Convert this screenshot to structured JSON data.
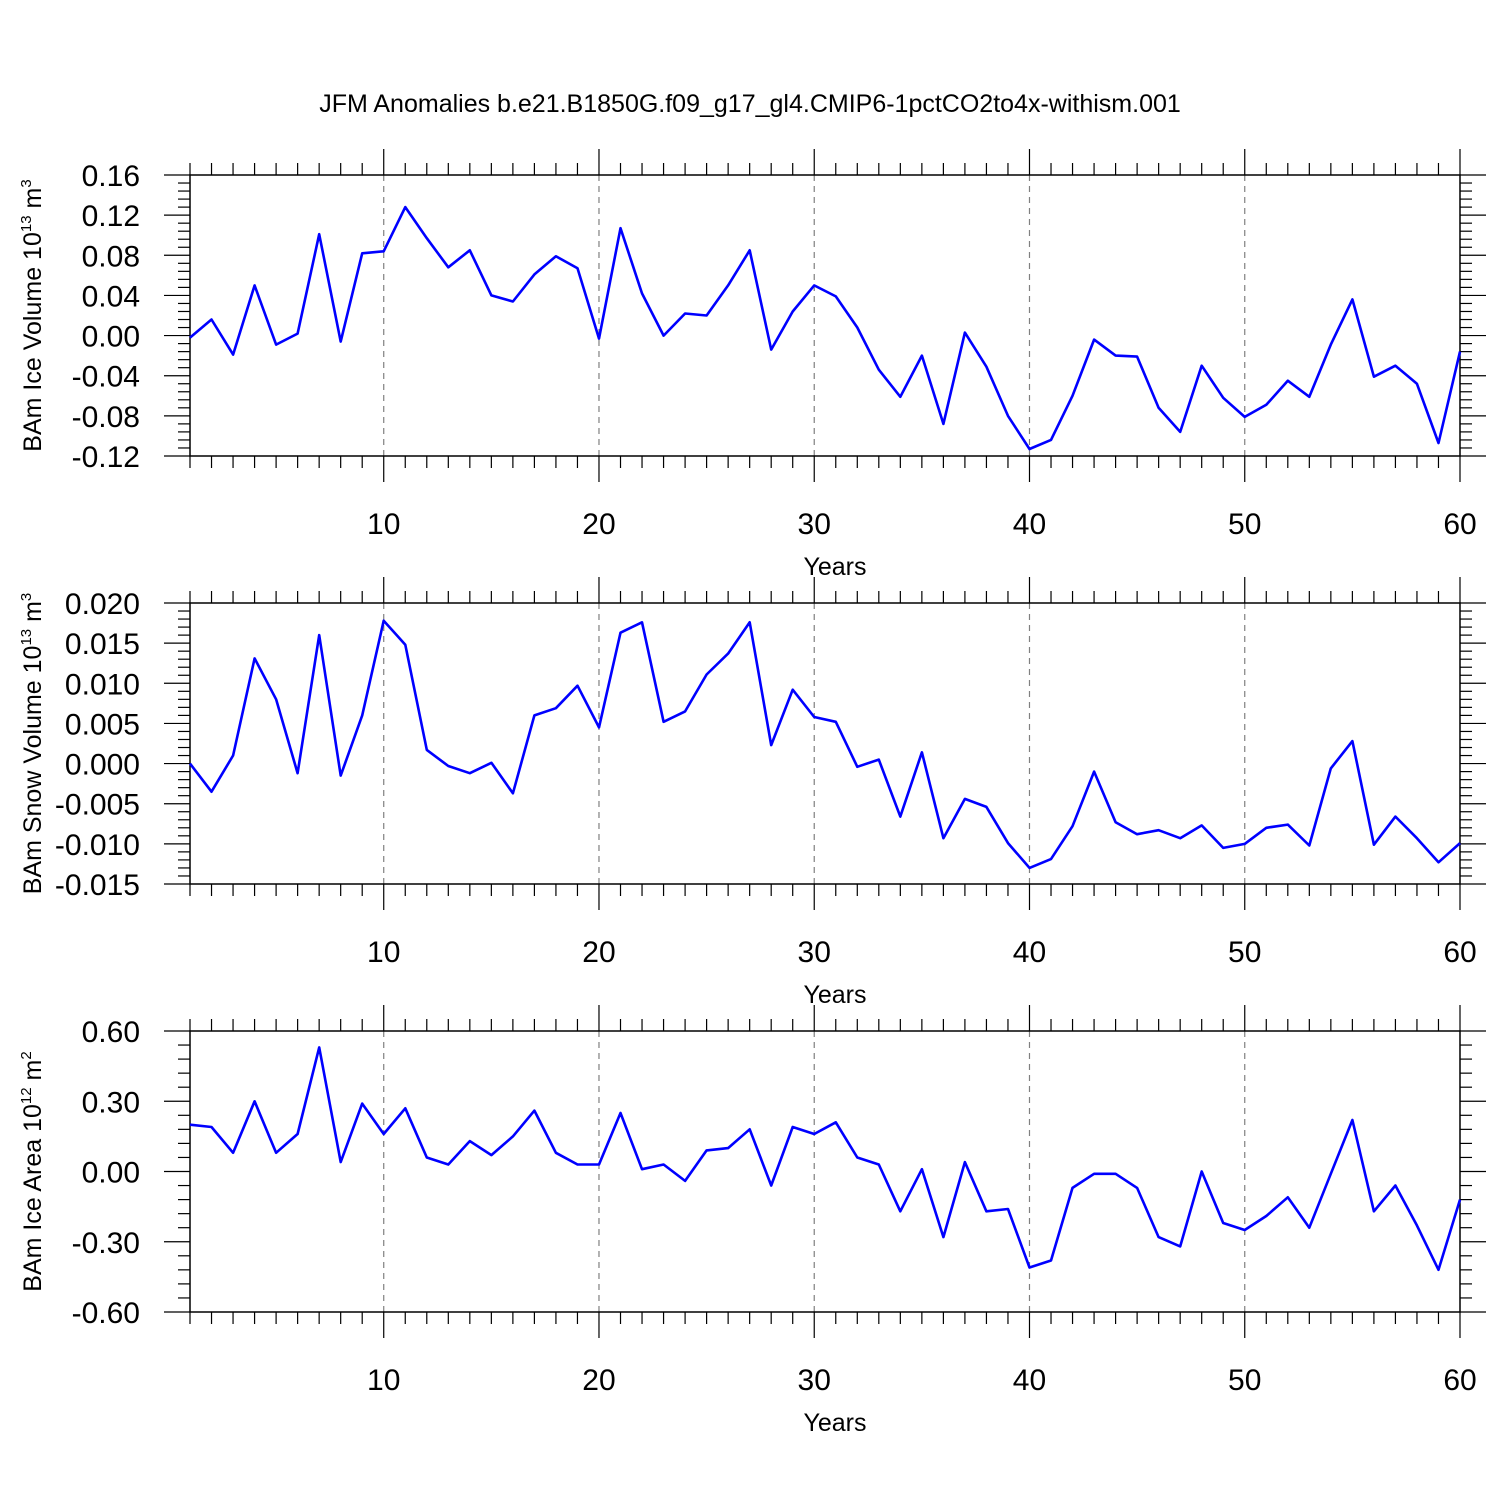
{
  "title": "JFM Anomalies b.e21.B1850G.f09_g17_gl4.CMIP6-1pctCO2to4x-withism.001",
  "colors": {
    "line": "#0000ff",
    "axis": "#000000",
    "grid": "#808080"
  },
  "chart_data": [
    {
      "type": "line",
      "title": "JFM Anomalies b.e21.B1850G.f09_g17_gl4.CMIP6-1pctCO2to4x-withism.001",
      "xlabel": "Years",
      "ylabel": "BAm Ice Volume 10",
      "ylabel_exp": "13",
      "ylabel_unit": "m",
      "ylabel_unit_exp": "3",
      "xlim": [
        1,
        60
      ],
      "ylim": [
        -0.12,
        0.16
      ],
      "xticks": [
        10,
        20,
        30,
        40,
        50,
        60
      ],
      "xtick_labels": [
        "10",
        "20",
        "30",
        "40",
        "50",
        "60"
      ],
      "yticks": [
        -0.12,
        -0.08,
        -0.04,
        0.0,
        0.04,
        0.08,
        0.12,
        0.16
      ],
      "ytick_labels": [
        "-0.12",
        "-0.08",
        "-0.04",
        "0.00",
        "0.04",
        "0.08",
        "0.12",
        "0.16"
      ],
      "grid": "vertical dashed at major x ticks",
      "x_start": 1,
      "series": [
        {
          "name": "BAm Ice Volume",
          "values": [
            -0.002,
            0.016,
            -0.019,
            0.05,
            -0.009,
            0.002,
            0.101,
            -0.006,
            0.082,
            0.084,
            0.128,
            0.097,
            0.068,
            0.085,
            0.04,
            0.034,
            0.061,
            0.079,
            0.067,
            -0.003,
            0.107,
            0.042,
            0.0,
            0.022,
            0.02,
            0.05,
            0.085,
            -0.014,
            0.024,
            0.05,
            0.039,
            0.008,
            -0.034,
            -0.061,
            -0.02,
            -0.088,
            0.003,
            -0.031,
            -0.08,
            -0.113,
            -0.104,
            -0.06,
            -0.004,
            -0.02,
            -0.021,
            -0.072,
            -0.096,
            -0.03,
            -0.062,
            -0.081,
            -0.069,
            -0.045,
            -0.061,
            -0.009,
            0.036,
            -0.041,
            -0.03,
            -0.048,
            -0.107,
            -0.016
          ]
        }
      ]
    },
    {
      "type": "line",
      "xlabel": "Years",
      "ylabel": "BAm Snow Volume 10",
      "ylabel_exp": "13",
      "ylabel_unit": "m",
      "ylabel_unit_exp": "3",
      "xlim": [
        1,
        60
      ],
      "ylim": [
        -0.015,
        0.02
      ],
      "xticks": [
        10,
        20,
        30,
        40,
        50,
        60
      ],
      "xtick_labels": [
        "10",
        "20",
        "30",
        "40",
        "50",
        "60"
      ],
      "yticks": [
        -0.015,
        -0.01,
        -0.005,
        0.0,
        0.005,
        0.01,
        0.015,
        0.02
      ],
      "ytick_labels": [
        "-0.015",
        "-0.010",
        "-0.005",
        "0.000",
        "0.005",
        "0.010",
        "0.015",
        "0.020"
      ],
      "grid": "vertical dashed at major x ticks",
      "x_start": 1,
      "series": [
        {
          "name": "BAm Snow Volume",
          "values": [
            0.0,
            -0.0035,
            0.001,
            0.0131,
            0.008,
            -0.0012,
            0.016,
            -0.0015,
            0.006,
            0.0178,
            0.0148,
            0.0017,
            -0.0003,
            -0.0012,
            0.0001,
            -0.0037,
            0.006,
            0.0069,
            0.0097,
            0.0045,
            0.0163,
            0.0176,
            0.0052,
            0.0065,
            0.0111,
            0.0137,
            0.0176,
            0.0023,
            0.0092,
            0.0058,
            0.0052,
            -0.0004,
            0.0005,
            -0.0066,
            0.0014,
            -0.0093,
            -0.0044,
            -0.0054,
            -0.0099,
            -0.013,
            -0.0119,
            -0.0078,
            -0.001,
            -0.0073,
            -0.0088,
            -0.0083,
            -0.0093,
            -0.0077,
            -0.0105,
            -0.01,
            -0.008,
            -0.0076,
            -0.0102,
            -0.0006,
            0.0028,
            -0.0101,
            -0.0066,
            -0.0093,
            -0.0123,
            -0.0099
          ]
        }
      ]
    },
    {
      "type": "line",
      "xlabel": "Years",
      "ylabel": "BAm Ice Area 10",
      "ylabel_exp": "12",
      "ylabel_unit": "m",
      "ylabel_unit_exp": "2",
      "xlim": [
        1,
        60
      ],
      "ylim": [
        -0.6,
        0.6
      ],
      "xticks": [
        10,
        20,
        30,
        40,
        50,
        60
      ],
      "xtick_labels": [
        "10",
        "20",
        "30",
        "40",
        "50",
        "60"
      ],
      "yticks": [
        -0.6,
        -0.3,
        0.0,
        0.3,
        0.6
      ],
      "ytick_labels": [
        "-0.60",
        "-0.30",
        "0.00",
        "0.30",
        "0.60"
      ],
      "grid": "vertical dashed at major x ticks",
      "x_start": 1,
      "series": [
        {
          "name": "BAm Ice Area",
          "values": [
            0.2,
            0.19,
            0.08,
            0.3,
            0.08,
            0.16,
            0.53,
            0.04,
            0.29,
            0.16,
            0.27,
            0.06,
            0.03,
            0.13,
            0.07,
            0.15,
            0.26,
            0.08,
            0.03,
            0.03,
            0.25,
            0.01,
            0.03,
            -0.04,
            0.09,
            0.1,
            0.18,
            -0.06,
            0.19,
            0.16,
            0.21,
            0.06,
            0.03,
            -0.17,
            0.01,
            -0.28,
            0.04,
            -0.17,
            -0.16,
            -0.41,
            -0.38,
            -0.07,
            -0.01,
            -0.01,
            -0.07,
            -0.28,
            -0.32,
            0.0,
            -0.22,
            -0.25,
            -0.19,
            -0.11,
            -0.24,
            -0.01,
            0.22,
            -0.17,
            -0.06,
            -0.23,
            -0.42,
            -0.12
          ]
        }
      ]
    }
  ]
}
